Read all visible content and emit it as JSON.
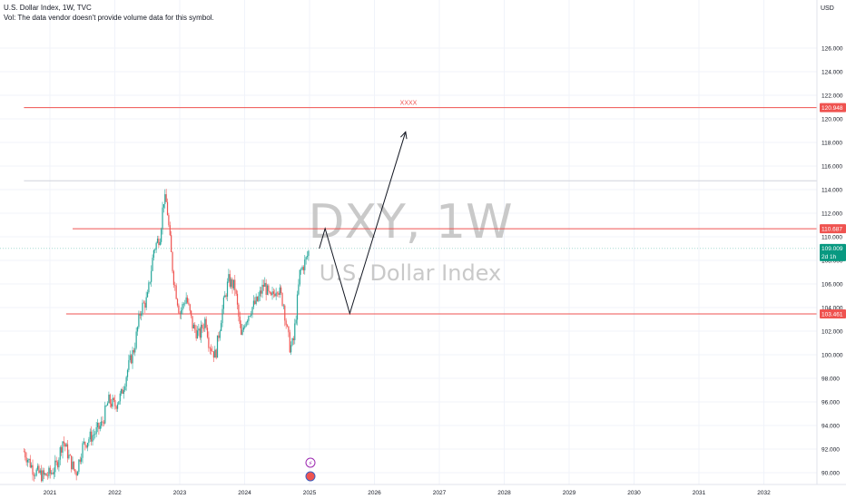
{
  "header": {
    "title": "U.S. Dollar Index, 1W, TVC",
    "vol_note": "Vol: The data vendor doesn't provide volume data for this symbol."
  },
  "currency_button": "USD",
  "watermark": {
    "symbol": "DXY, 1W",
    "name": "U.S. Dollar Index"
  },
  "colors": {
    "up": "#26a69a",
    "down": "#ef5350",
    "level": "#ef5350",
    "last_price": "#089981",
    "grid": "#f0f3fa",
    "text": "#131722"
  },
  "chart_data": {
    "type": "candlestick",
    "ylim": [
      89.3,
      127.3
    ],
    "y_ticks": [
      "90.000",
      "92.000",
      "94.000",
      "96.000",
      "98.000",
      "100.000",
      "102.000",
      "104.000",
      "106.000",
      "108.000",
      "110.000",
      "112.000",
      "114.000",
      "116.000",
      "118.000",
      "120.000",
      "122.000",
      "124.000",
      "126.000"
    ],
    "x_ticks": [
      "2021",
      "2022",
      "2023",
      "2024",
      "2025",
      "2026",
      "2027",
      "2028",
      "2029",
      "2030",
      "2031",
      "2032"
    ],
    "horizontal_levels": [
      {
        "value": 120.948,
        "label": "120.948",
        "note": "XXXX",
        "from": "2020.6"
      },
      {
        "value": 110.687,
        "label": "110.687",
        "from": "2021.35"
      },
      {
        "value": 103.461,
        "label": "103.461",
        "from": "2021.25"
      },
      {
        "value": 114.75,
        "label": "",
        "from": "2020.6",
        "color": "#d0d3db"
      }
    ],
    "last_price": {
      "value": 109.009,
      "label": "109.009",
      "countdown": "2d 1h"
    },
    "projection": [
      {
        "date": 2025.15,
        "price": 109.0
      },
      {
        "date": 2025.24,
        "price": 110.7
      },
      {
        "date": 2025.62,
        "price": 103.5
      },
      {
        "date": 2026.48,
        "price": 118.9
      }
    ],
    "price_path": [
      [
        2020.6,
        91.8
      ],
      [
        2020.75,
        90.2
      ],
      [
        2020.9,
        89.7
      ],
      [
        2021.0,
        89.9
      ],
      [
        2021.1,
        90.6
      ],
      [
        2021.2,
        92.8
      ],
      [
        2021.3,
        91.2
      ],
      [
        2021.4,
        89.9
      ],
      [
        2021.5,
        92.2
      ],
      [
        2021.6,
        92.9
      ],
      [
        2021.7,
        93.4
      ],
      [
        2021.8,
        94.1
      ],
      [
        2021.9,
        96.1
      ],
      [
        2022.0,
        95.7
      ],
      [
        2022.1,
        96.6
      ],
      [
        2022.2,
        98.8
      ],
      [
        2022.3,
        100.6
      ],
      [
        2022.4,
        103.9
      ],
      [
        2022.5,
        104.7
      ],
      [
        2022.6,
        108.9
      ],
      [
        2022.7,
        110.2
      ],
      [
        2022.75,
        113.2
      ],
      [
        2022.8,
        112.8
      ],
      [
        2022.85,
        109.6
      ],
      [
        2022.9,
        106.7
      ],
      [
        2023.0,
        103.5
      ],
      [
        2023.1,
        104.9
      ],
      [
        2023.2,
        102.4
      ],
      [
        2023.3,
        101.6
      ],
      [
        2023.4,
        103.1
      ],
      [
        2023.45,
        101.0
      ],
      [
        2023.55,
        99.9
      ],
      [
        2023.65,
        103.6
      ],
      [
        2023.75,
        106.3
      ],
      [
        2023.85,
        105.7
      ],
      [
        2023.95,
        101.3
      ],
      [
        2024.0,
        102.8
      ],
      [
        2024.1,
        103.9
      ],
      [
        2024.2,
        104.6
      ],
      [
        2024.3,
        106.0
      ],
      [
        2024.4,
        104.6
      ],
      [
        2024.5,
        105.9
      ],
      [
        2024.6,
        104.3
      ],
      [
        2024.65,
        102.2
      ],
      [
        2024.7,
        100.6
      ],
      [
        2024.75,
        101.0
      ],
      [
        2024.8,
        103.9
      ],
      [
        2024.85,
        106.9
      ],
      [
        2024.9,
        107.5
      ],
      [
        2024.95,
        108.1
      ],
      [
        2025.0,
        109.0
      ]
    ]
  }
}
